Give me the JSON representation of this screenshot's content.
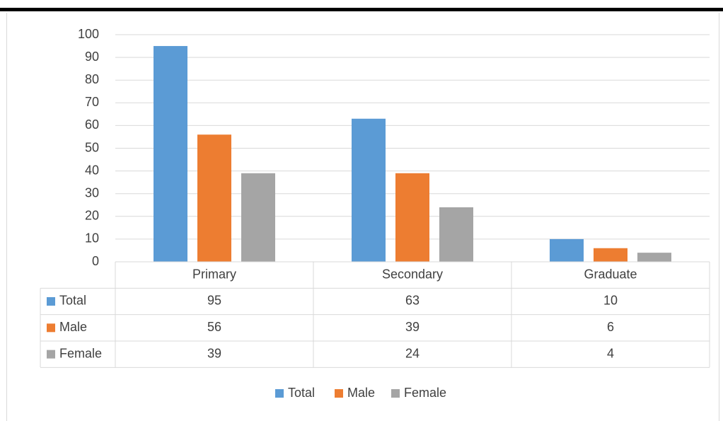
{
  "chart_data": {
    "type": "bar",
    "categories": [
      "Primary",
      "Secondary",
      "Graduate"
    ],
    "series": [
      {
        "name": "Total",
        "values": [
          95,
          63,
          10
        ],
        "color": "#5b9bd5"
      },
      {
        "name": "Male",
        "values": [
          56,
          39,
          6
        ],
        "color": "#ed7d31"
      },
      {
        "name": "Female",
        "values": [
          39,
          24,
          4
        ],
        "color": "#a5a5a5"
      }
    ],
    "ylim": [
      0,
      100
    ],
    "yticks": [
      0,
      10,
      20,
      30,
      40,
      50,
      60,
      70,
      80,
      90,
      100
    ],
    "grid": true,
    "legend": "bottom",
    "data_table": true
  }
}
